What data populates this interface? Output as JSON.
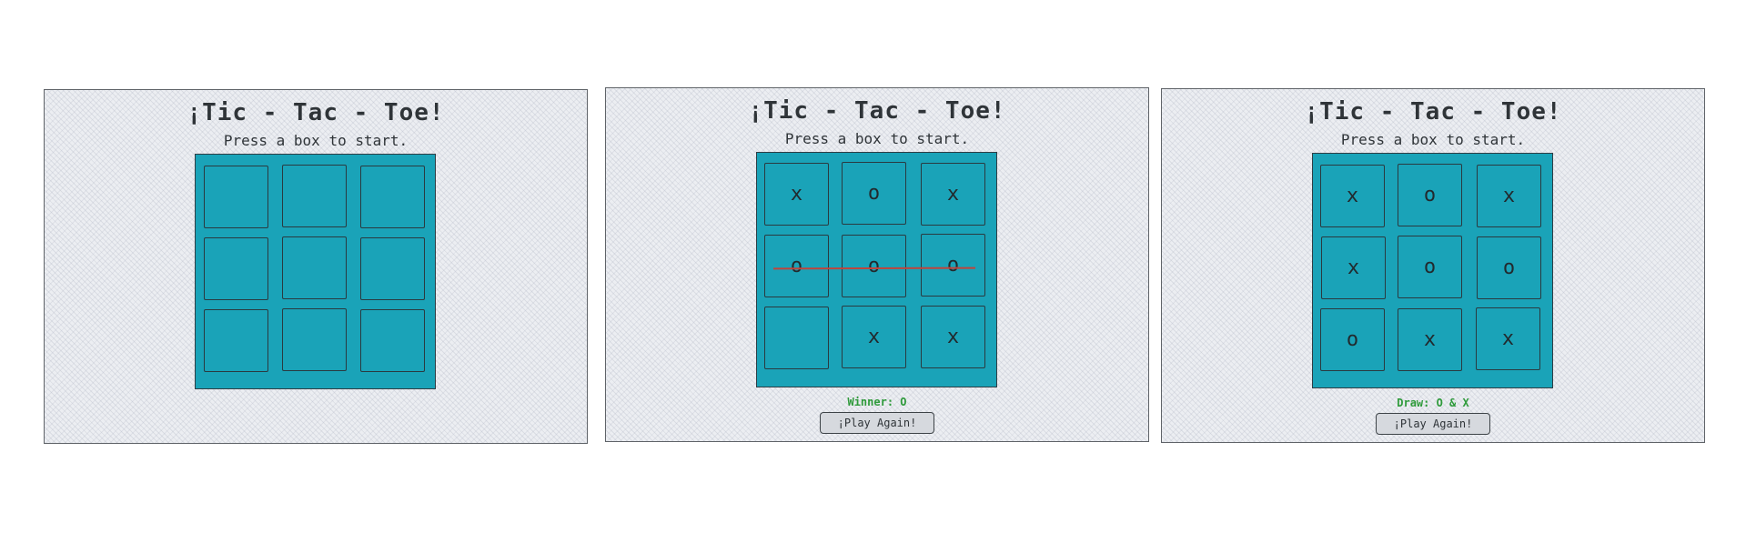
{
  "colors": {
    "panel_background": "#eceef2",
    "board": "#1aa3b8",
    "cell_border": "#2a3a40",
    "status_text": "#2e9a3a",
    "win_line": "#c0443c",
    "button_background": "#d6d9de"
  },
  "panels": [
    {
      "title": "¡Tic - Tac - Toe!",
      "subtitle": "Press a box to start.",
      "cells": [
        "",
        "",
        "",
        "",
        "",
        "",
        "",
        "",
        ""
      ]
    },
    {
      "title": "¡Tic - Tac - Toe!",
      "subtitle": "Press a box to start.",
      "cells": [
        "x",
        "o",
        "x",
        "o",
        "o",
        "o",
        "",
        "x",
        "x"
      ],
      "status": "Winner: O",
      "button": "¡Play Again!",
      "winning_row": "middle"
    },
    {
      "title": "¡Tic - Tac - Toe!",
      "subtitle": "Press a box to start.",
      "cells": [
        "x",
        "o",
        "x",
        "x",
        "o",
        "o",
        "o",
        "x",
        "x"
      ],
      "status": "Draw: O & X",
      "button": "¡Play Again!"
    }
  ]
}
